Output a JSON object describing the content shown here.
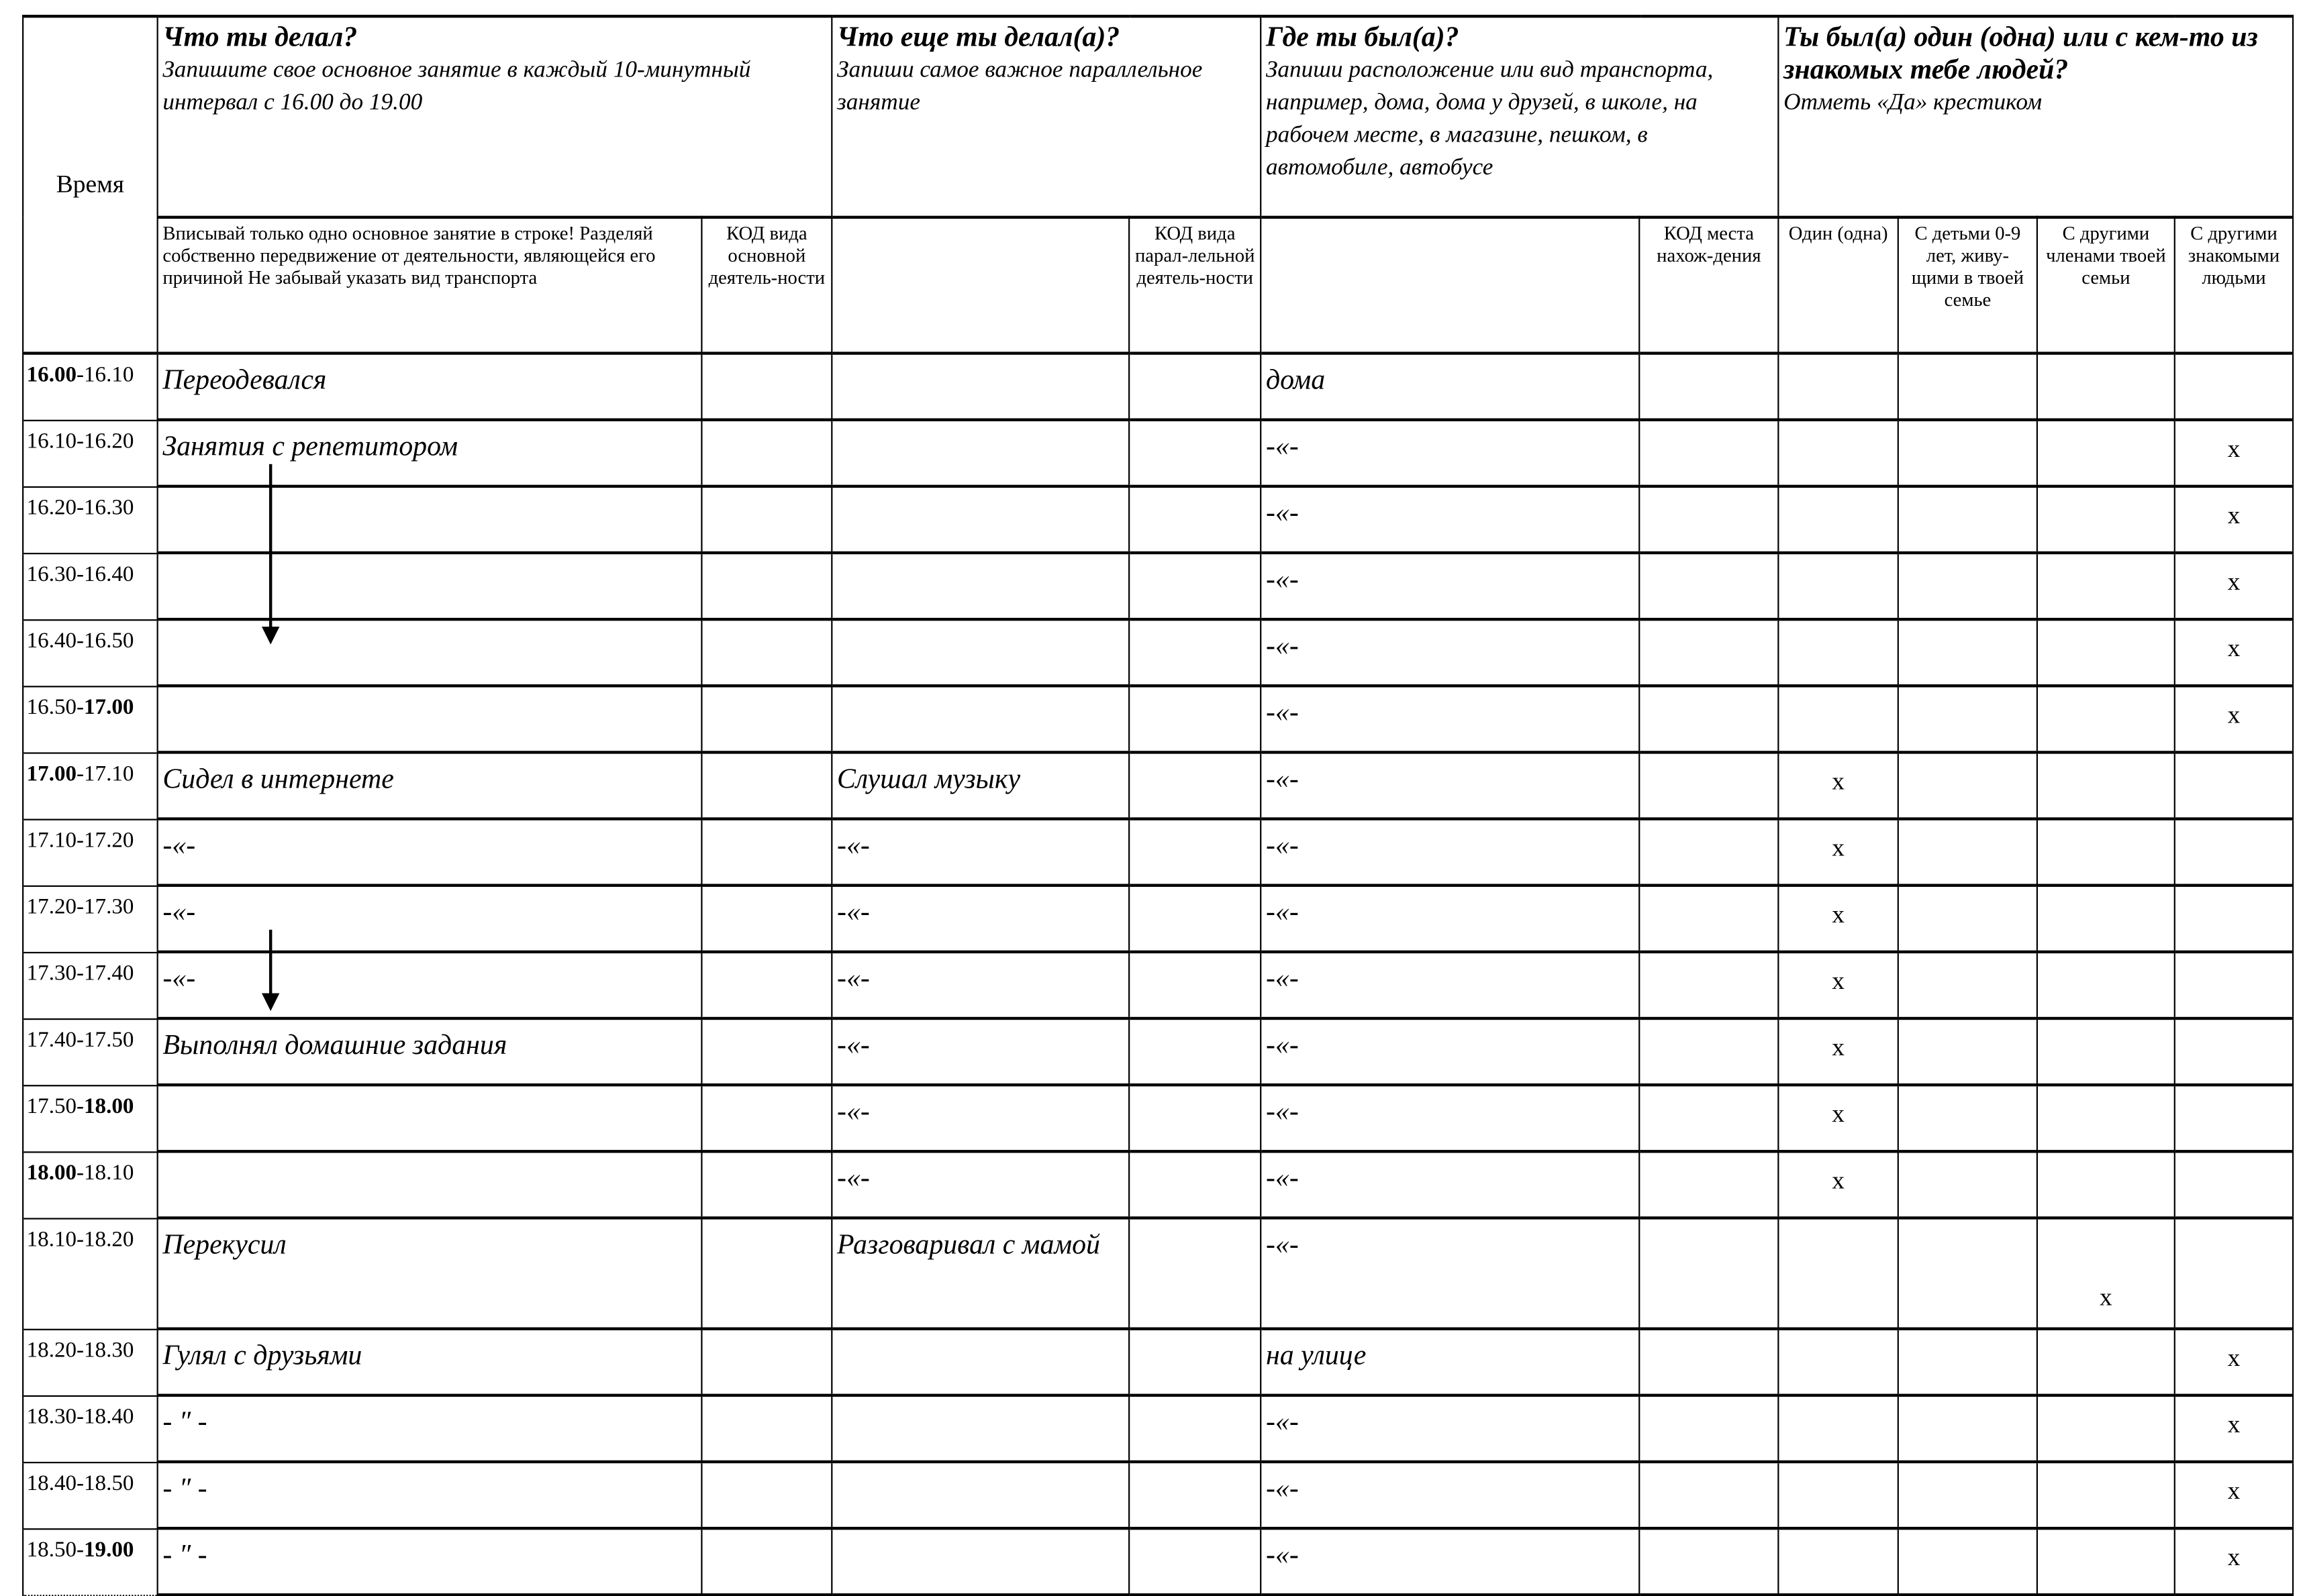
{
  "header": {
    "time": "Время",
    "main": {
      "title": "Что ты делал?",
      "subtitle": "Запишите свое основное занятие в каждый 10-минутный интервал с 16.00 до 19.00",
      "note": "Вписывай только одно основное занятие в строке! Разделяй собственно передвижение от деятельности, являющейся его причиной Не забывай указать вид транспорта",
      "code": "КОД вида основной деятель-ности"
    },
    "parallel": {
      "title": "Что еще ты делал(а)?",
      "subtitle": "Запиши самое важное параллельное занятие",
      "code": "КОД вида парал-лельной деятель-ности"
    },
    "where": {
      "title": "Где ты был(а)?",
      "subtitle": "Запиши расположение или вид транспорта, например,  дома, дома у друзей, в школе, на рабочем месте,  в магазине, пешком, в автомобиле, автобусе",
      "code": "КОД места нахож-дения"
    },
    "with": {
      "title": "Ты был(а) один (одна) или с кем-то из знакомых тебе людей?",
      "subtitle": "Отметь «Да» крестиком",
      "alone": "Один (одна)",
      "kids": "С детьми 0-9 лет, живу-щими в твоей семье",
      "family": "С другими членами твоей семьи",
      "friends": "С другими знакомыми людьми"
    }
  },
  "mark": "x",
  "rows": [
    {
      "start": "16.00",
      "end": "16.10",
      "bold": "start",
      "main": "Переодевался",
      "par": "",
      "loc": "дома",
      "with": ""
    },
    {
      "start": "16.10",
      "end": "16.20",
      "bold": "",
      "main": "Занятия с репетитором",
      "par": "",
      "loc": "-«-",
      "with": "friends"
    },
    {
      "start": "16.20",
      "end": "16.30",
      "bold": "",
      "main": "",
      "par": "",
      "loc": "-«-",
      "with": "friends"
    },
    {
      "start": "16.30",
      "end": "16.40",
      "bold": "",
      "main": "",
      "par": "",
      "loc": "-«-",
      "with": "friends"
    },
    {
      "start": "16.40",
      "end": "16.50",
      "bold": "",
      "main": "",
      "par": "",
      "loc": "-«-",
      "with": "friends"
    },
    {
      "start": "16.50",
      "end": "17.00",
      "bold": "end",
      "main": "",
      "par": "",
      "loc": "-«-",
      "with": "friends"
    },
    {
      "start": "17.00",
      "end": "17.10",
      "bold": "start",
      "main": "Сидел в интернете",
      "par": "Слушал музыку",
      "loc": "-«-",
      "with": "alone"
    },
    {
      "start": "17.10",
      "end": "17.20",
      "bold": "",
      "main": "-«-",
      "par": "-«-",
      "loc": "-«-",
      "with": "alone"
    },
    {
      "start": "17.20",
      "end": "17.30",
      "bold": "",
      "main": "-«-",
      "par": "-«-",
      "loc": "-«-",
      "with": "alone"
    },
    {
      "start": "17.30",
      "end": "17.40",
      "bold": "",
      "main": "-«-",
      "par": "-«-",
      "loc": "-«-",
      "with": "alone"
    },
    {
      "start": "17.40",
      "end": "17.50",
      "bold": "",
      "main": "Выполнял домашние задания",
      "par": "-«-",
      "loc": "-«-",
      "with": "alone"
    },
    {
      "start": "17.50",
      "end": "18.00",
      "bold": "end",
      "main": "",
      "par": "-«-",
      "loc": "-«-",
      "with": "alone"
    },
    {
      "start": "18.00",
      "end": "18.10",
      "bold": "start",
      "main": "",
      "par": "-«-",
      "loc": "-«-",
      "with": "alone"
    },
    {
      "start": "18.10",
      "end": "18.20",
      "bold": "",
      "main": "Перекусил",
      "par": "Разговаривал с мамой",
      "loc": "-«-",
      "with": "family",
      "tall": true
    },
    {
      "start": "18.20",
      "end": "18.30",
      "bold": "",
      "main": "Гулял с друзьями",
      "par": "",
      "loc": "на улице",
      "with": "friends"
    },
    {
      "start": "18.30",
      "end": "18.40",
      "bold": "",
      "main": "- ″ -",
      "par": "",
      "loc": "-«-",
      "with": "friends"
    },
    {
      "start": "18.40",
      "end": "18.50",
      "bold": "",
      "main": "- ″ -",
      "par": "",
      "loc": "-«-",
      "with": "friends"
    },
    {
      "start": "18.50",
      "end": "19.00",
      "bold": "end",
      "main": "- ″ -",
      "par": "",
      "loc": "-«-",
      "with": "friends"
    }
  ]
}
